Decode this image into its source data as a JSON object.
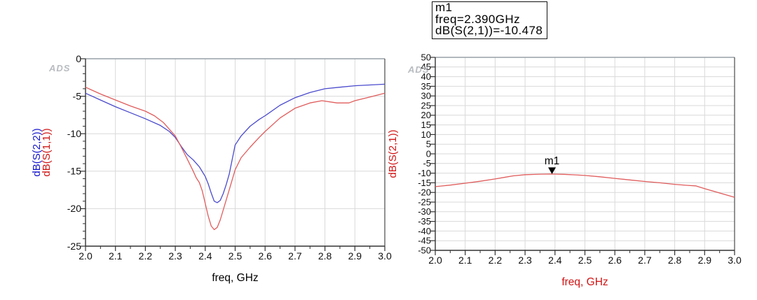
{
  "watermark": "ADS",
  "marker_box": {
    "lines": [
      "m1",
      "freq=2.390GHz",
      "dB(S(2,1))=-10.478"
    ]
  },
  "colors": {
    "grid": "#d9d9d9",
    "frame_top": "#97a0a8",
    "frame_dark": "#333333",
    "tick_label": "#111111",
    "watermark": "#b8bcc0",
    "blue_trace": "#4a4acd",
    "red_trace": "#e05c5c",
    "blue_label": "#1414cc",
    "red_label": "#d01414",
    "marker": "#000000"
  },
  "chart_data": [
    {
      "type": "line",
      "title": "",
      "xlabel": "freq, GHz",
      "xlabel_color": "#000000",
      "x_range": [
        2.0,
        3.0
      ],
      "x_minor_step": 0.05,
      "x_ticks": [
        "2.0",
        "2.1",
        "2.2",
        "2.3",
        "2.4",
        "2.5",
        "2.6",
        "2.7",
        "2.8",
        "2.9",
        "3.0"
      ],
      "y_range": [
        -25,
        0
      ],
      "y_minor_step": 1,
      "y_ticks": [
        "0",
        "-5",
        "-10",
        "-15",
        "-20",
        "-25"
      ],
      "grid": true,
      "legend_position": "y-axis",
      "y_axis_titles": [
        {
          "text": "dB(S(2,2))",
          "color": "#1414cc"
        },
        {
          "text": "dB(S(1,1))",
          "color": "#d01414"
        }
      ],
      "series": [
        {
          "name": "dB(S(2,2))",
          "color": "#4a4acd",
          "points": [
            [
              2.0,
              -4.6
            ],
            [
              2.05,
              -5.5
            ],
            [
              2.1,
              -6.4
            ],
            [
              2.15,
              -7.2
            ],
            [
              2.2,
              -8.0
            ],
            [
              2.25,
              -8.9
            ],
            [
              2.28,
              -9.7
            ],
            [
              2.3,
              -10.5
            ],
            [
              2.32,
              -11.7
            ],
            [
              2.34,
              -12.8
            ],
            [
              2.36,
              -13.5
            ],
            [
              2.38,
              -14.4
            ],
            [
              2.4,
              -15.7
            ],
            [
              2.41,
              -16.7
            ],
            [
              2.42,
              -17.9
            ],
            [
              2.43,
              -19.0
            ],
            [
              2.44,
              -19.2
            ],
            [
              2.45,
              -18.9
            ],
            [
              2.46,
              -18.0
            ],
            [
              2.47,
              -16.8
            ],
            [
              2.48,
              -15.4
            ],
            [
              2.5,
              -11.5
            ],
            [
              2.52,
              -10.3
            ],
            [
              2.55,
              -9.0
            ],
            [
              2.58,
              -8.1
            ],
            [
              2.6,
              -7.6
            ],
            [
              2.65,
              -6.2
            ],
            [
              2.7,
              -5.2
            ],
            [
              2.75,
              -4.5
            ],
            [
              2.8,
              -4.0
            ],
            [
              2.85,
              -3.8
            ],
            [
              2.9,
              -3.6
            ],
            [
              2.95,
              -3.5
            ],
            [
              3.0,
              -3.4
            ]
          ]
        },
        {
          "name": "dB(S(1,1))",
          "color": "#e05c5c",
          "points": [
            [
              2.0,
              -3.8
            ],
            [
              2.05,
              -4.7
            ],
            [
              2.1,
              -5.5
            ],
            [
              2.15,
              -6.3
            ],
            [
              2.2,
              -7.0
            ],
            [
              2.23,
              -7.6
            ],
            [
              2.26,
              -8.5
            ],
            [
              2.28,
              -9.4
            ],
            [
              2.3,
              -10.3
            ],
            [
              2.32,
              -11.8
            ],
            [
              2.34,
              -13.4
            ],
            [
              2.36,
              -15.0
            ],
            [
              2.37,
              -15.9
            ],
            [
              2.38,
              -16.5
            ],
            [
              2.39,
              -17.6
            ],
            [
              2.4,
              -19.3
            ],
            [
              2.41,
              -21.0
            ],
            [
              2.42,
              -22.3
            ],
            [
              2.43,
              -22.8
            ],
            [
              2.44,
              -22.5
            ],
            [
              2.45,
              -21.5
            ],
            [
              2.46,
              -20.2
            ],
            [
              2.48,
              -17.5
            ],
            [
              2.5,
              -14.8
            ],
            [
              2.52,
              -13.2
            ],
            [
              2.55,
              -11.8
            ],
            [
              2.58,
              -10.5
            ],
            [
              2.6,
              -9.7
            ],
            [
              2.65,
              -7.9
            ],
            [
              2.7,
              -6.6
            ],
            [
              2.75,
              -5.9
            ],
            [
              2.79,
              -5.6
            ],
            [
              2.84,
              -5.9
            ],
            [
              2.88,
              -5.9
            ],
            [
              2.9,
              -5.6
            ],
            [
              2.95,
              -5.1
            ],
            [
              3.0,
              -4.6
            ]
          ]
        }
      ]
    },
    {
      "type": "line",
      "title": "",
      "xlabel": "freq, GHz",
      "xlabel_color": "#d01414",
      "x_range": [
        2.0,
        3.0
      ],
      "x_minor_step": 0.05,
      "x_ticks": [
        "2.0",
        "2.1",
        "2.2",
        "2.3",
        "2.4",
        "2.5",
        "2.6",
        "2.7",
        "2.8",
        "2.9",
        "3.0"
      ],
      "y_range": [
        -50,
        50
      ],
      "y_minor_step": null,
      "y_ticks": [
        "50",
        "45",
        "40",
        "35",
        "30",
        "25",
        "20",
        "15",
        "10",
        "5",
        "0",
        "-5",
        "-10",
        "-15",
        "-20",
        "-25",
        "-30",
        "-35",
        "-40",
        "-45",
        "-50"
      ],
      "grid": true,
      "y_axis_titles": [
        {
          "text": "dB(S(2,1))",
          "color": "#d01414"
        }
      ],
      "marker": {
        "label": "m1",
        "freq_ghz": 2.39,
        "value_db": -10.478
      },
      "series": [
        {
          "name": "dB(S(2,1))",
          "color": "#e05c5c",
          "points": [
            [
              2.0,
              -17.0
            ],
            [
              2.05,
              -16.2
            ],
            [
              2.1,
              -15.2
            ],
            [
              2.15,
              -14.2
            ],
            [
              2.2,
              -13.0
            ],
            [
              2.23,
              -12.2
            ],
            [
              2.26,
              -11.4
            ],
            [
              2.3,
              -10.8
            ],
            [
              2.35,
              -10.55
            ],
            [
              2.39,
              -10.478
            ],
            [
              2.43,
              -10.6
            ],
            [
              2.47,
              -10.9
            ],
            [
              2.5,
              -11.2
            ],
            [
              2.55,
              -11.9
            ],
            [
              2.6,
              -12.7
            ],
            [
              2.65,
              -13.5
            ],
            [
              2.7,
              -14.3
            ],
            [
              2.75,
              -15.0
            ],
            [
              2.8,
              -15.8
            ],
            [
              2.84,
              -16.3
            ],
            [
              2.87,
              -16.6
            ],
            [
              2.9,
              -18.0
            ],
            [
              2.95,
              -20.3
            ],
            [
              3.0,
              -22.5
            ]
          ]
        }
      ]
    }
  ]
}
